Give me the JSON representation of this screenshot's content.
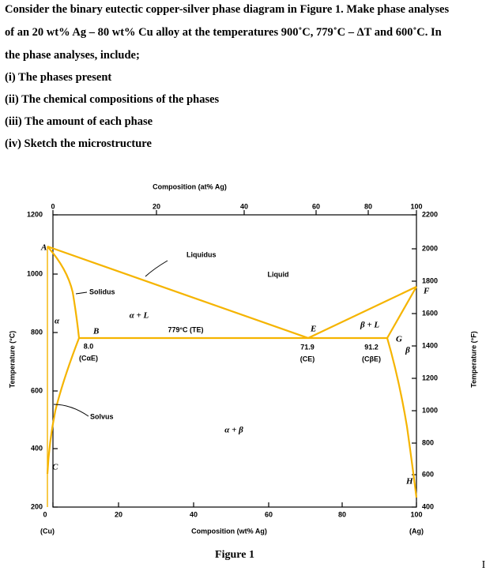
{
  "question": {
    "lines": [
      "Consider the binary eutectic copper-silver phase diagram in Figure 1. Make phase analyses",
      "of an 20 wt% Ag – 80 wt% Cu alloy at the temperatures 900˚C, 779˚C – ΔT and 600˚C. In",
      "the phase analyses, include;",
      "(i) The phases present",
      "(ii) The chemical compositions of the phases",
      "(iii) The amount of each phase",
      "(iv) Sketch the microstructure"
    ]
  },
  "figure": {
    "top_axis": {
      "title": "Composition (at% Ag)",
      "ticks": [
        "0",
        "20",
        "40",
        "60",
        "80",
        "100"
      ]
    },
    "bottom_axis": {
      "title": "Composition (wt% Ag)",
      "ticks": [
        "0",
        "20",
        "40",
        "60",
        "80",
        "100"
      ],
      "left_end": "(Cu)",
      "right_end": "(Ag)"
    },
    "left_axis": {
      "title": "Temperature (°C)",
      "ticks": [
        "1200",
        "1000",
        "800",
        "600",
        "400",
        "200"
      ]
    },
    "right_axis": {
      "title": "Temperature (°F)",
      "ticks": [
        "2200",
        "2000",
        "1800",
        "1600",
        "1400",
        "1200",
        "1000",
        "800",
        "600",
        "400"
      ]
    },
    "labels": {
      "liquidus": "Liquidus",
      "liquid": "Liquid",
      "solidus": "Solidus",
      "solvus": "Solvus",
      "alpha": "α",
      "alpha_l": "α + L",
      "beta_l": "β + L",
      "beta": "β",
      "alpha_beta": "α + β",
      "eutectic_temp": "779°C (TE)",
      "A": "A",
      "B": "B",
      "C": "C",
      "E": "E",
      "F": "F",
      "G": "G",
      "H": "H",
      "c_alpha": "8.0",
      "c_alpha_name": "(CαE)",
      "c_e": "71.9",
      "c_e_name": "(CE)",
      "c_beta": "91.2",
      "c_beta_name": "(CβE)"
    },
    "caption": "Figure 1"
  },
  "cursor": "I"
}
